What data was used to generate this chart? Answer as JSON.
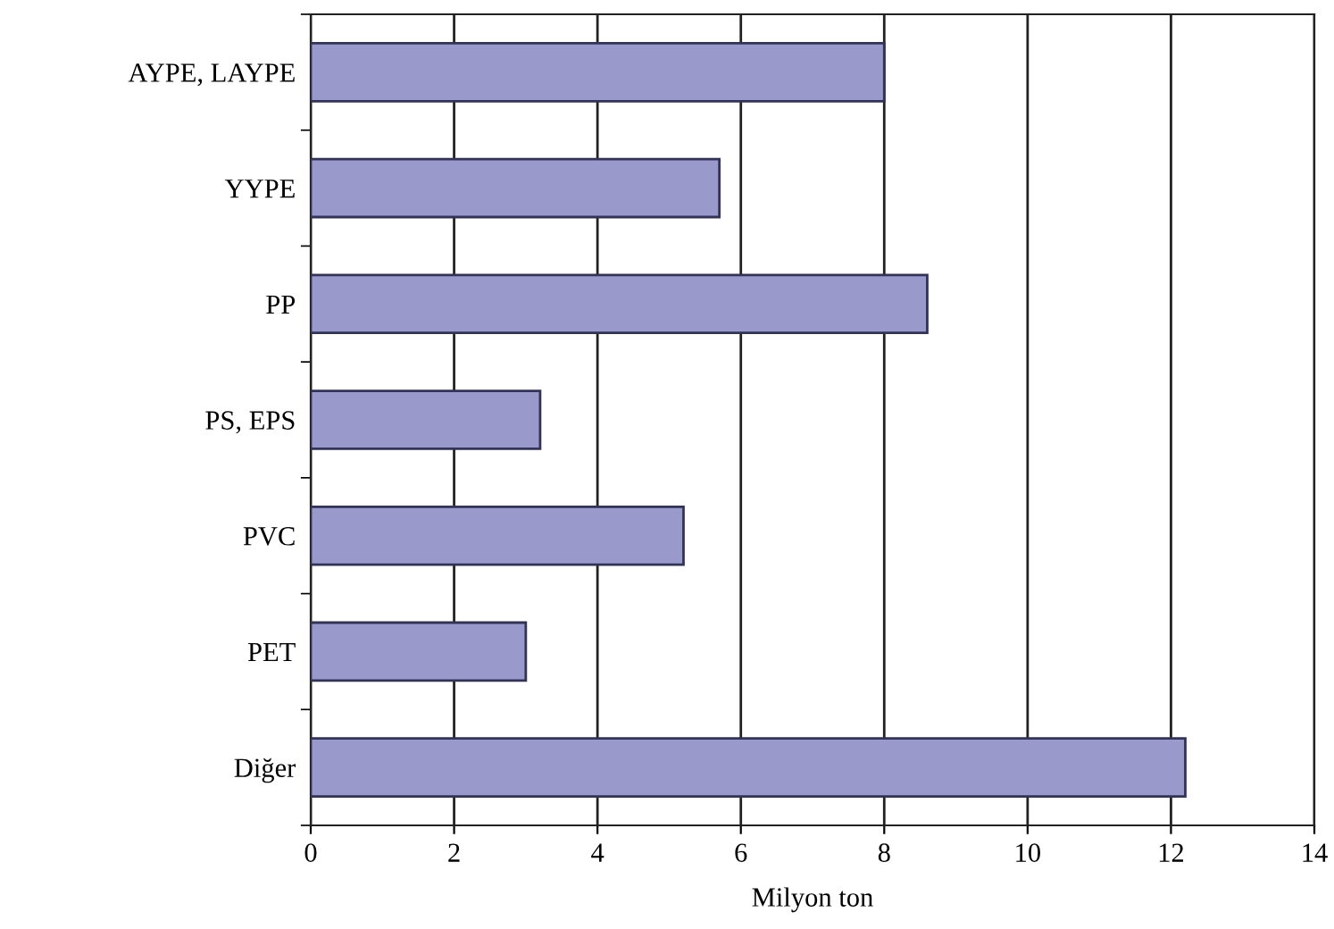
{
  "chart_data": {
    "type": "bar",
    "orientation": "horizontal",
    "categories": [
      "AYPE, LAYPE",
      "YYPE",
      "PP",
      "PS, EPS",
      "PVC",
      "PET",
      "Diğer"
    ],
    "values": [
      8.0,
      5.7,
      8.6,
      3.2,
      5.2,
      3.0,
      12.2
    ],
    "color": "#9999cc",
    "xlabel": "Milyon ton",
    "xlim": [
      0,
      14
    ],
    "xticks": [
      0,
      2,
      4,
      6,
      8,
      10,
      12,
      14
    ],
    "grid": "x",
    "legend": false
  }
}
